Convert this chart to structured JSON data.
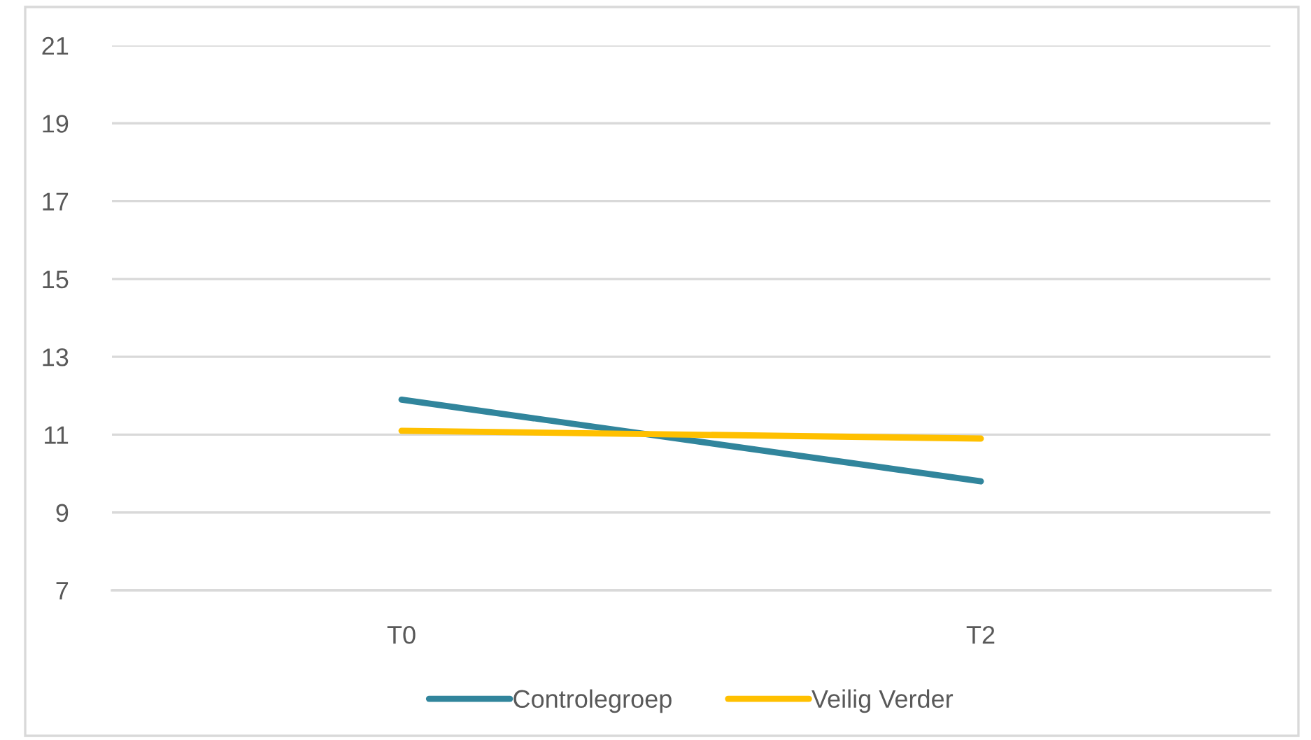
{
  "chart_data": {
    "type": "line",
    "categories": [
      "T0",
      "T2"
    ],
    "series": [
      {
        "name": "Controlegroep",
        "color": "#31859c",
        "values": [
          11.9,
          9.8
        ]
      },
      {
        "name": "Veilig Verder",
        "color": "#ffc000",
        "values": [
          11.1,
          10.9
        ]
      }
    ],
    "ylim": [
      7,
      21
    ],
    "yticks": [
      7,
      9,
      11,
      13,
      15,
      17,
      19,
      21
    ],
    "grid": "y",
    "legend": "bottom",
    "marker": "none",
    "line_style": "solid"
  }
}
